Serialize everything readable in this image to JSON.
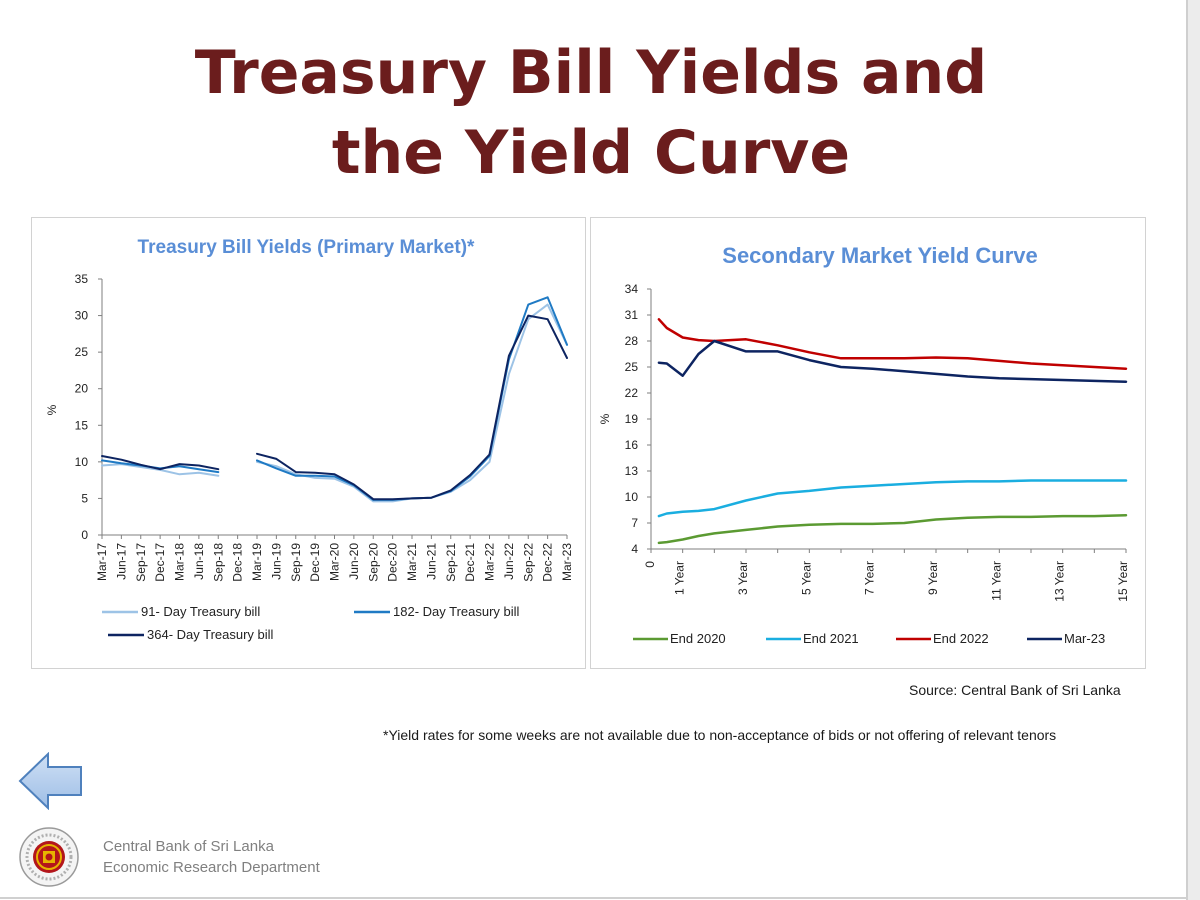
{
  "slide": {
    "title_line1": "Treasury Bill Yields and",
    "title_line2": "the Yield Curve",
    "source": "Source: Central Bank of Sri Lanka",
    "footnote": "*Yield rates for some weeks are not available due to non-acceptance of bids or not offering of relevant tenors",
    "org_line1": "Central Bank of Sri Lanka",
    "org_line2": "Economic Research Department",
    "back_icon": "left-arrow-icon",
    "logo_icon": "central-bank-seal"
  },
  "chart_data": [
    {
      "type": "line",
      "title": "Treasury Bill Yields (Primary Market)*",
      "ylabel": "%",
      "ylim": [
        0,
        35
      ],
      "yticks": [
        0,
        5,
        10,
        15,
        20,
        25,
        30,
        35
      ],
      "x_tick_labels": [
        "Mar-17",
        "Jun-17",
        "Sep-17",
        "Dec-17",
        "Mar-18",
        "Jun-18",
        "Sep-18",
        "Dec-18",
        "Mar-19",
        "Jun-19",
        "Sep-19",
        "Dec-19",
        "Mar-20",
        "Jun-20",
        "Sep-20",
        "Dec-20",
        "Mar-21",
        "Jun-21",
        "Sep-21",
        "Dec-21",
        "Mar-22",
        "Jun-22",
        "Sep-22",
        "Dec-22",
        "Mar-23"
      ],
      "legend_position": "bottom",
      "series": [
        {
          "name": "91- Day Treasury bill",
          "color": "#9dc3e6",
          "values": [
            9.5,
            9.7,
            9.3,
            8.9,
            8.3,
            8.5,
            8.1,
            null,
            10.0,
            9.4,
            8.3,
            7.8,
            7.7,
            6.6,
            4.6,
            4.6,
            5.0,
            5.1,
            5.9,
            7.5,
            10.0,
            22.0,
            29.5,
            31.5,
            26.0
          ]
        },
        {
          "name": "182- Day Treasury bill",
          "color": "#1f7ac4",
          "values": [
            10.2,
            9.8,
            9.5,
            9.1,
            9.4,
            9.0,
            8.6,
            null,
            10.2,
            9.1,
            8.1,
            8.1,
            8.0,
            6.8,
            4.8,
            4.8,
            5.0,
            5.1,
            6.0,
            8.0,
            10.8,
            24.0,
            31.5,
            32.5,
            26.0
          ]
        },
        {
          "name": "364- Day Treasury bill",
          "color": "#0d2461",
          "values": [
            10.8,
            10.3,
            9.6,
            9.0,
            9.7,
            9.5,
            9.0,
            null,
            11.1,
            10.4,
            8.6,
            8.5,
            8.3,
            6.9,
            4.9,
            4.9,
            5.0,
            5.1,
            6.1,
            8.2,
            11.0,
            24.5,
            30.0,
            29.5,
            24.2
          ]
        }
      ]
    },
    {
      "type": "line",
      "title": "Secondary Market Yield Curve",
      "ylabel": "%",
      "ylim": [
        4,
        34
      ],
      "yticks": [
        4,
        7,
        10,
        13,
        16,
        19,
        22,
        25,
        28,
        31,
        34
      ],
      "x": [
        0.25,
        0.5,
        1,
        1.5,
        2,
        3,
        4,
        5,
        6,
        7,
        8,
        9,
        10,
        11,
        12,
        13,
        14,
        15
      ],
      "x_tick_labels": [
        "0",
        "1 Year",
        "3 Year",
        "5 Year",
        "7 Year",
        "9 Year",
        "11 Year",
        "13 Year",
        "15 Year"
      ],
      "legend_position": "bottom",
      "series": [
        {
          "name": "End 2020",
          "color": "#5b9a32",
          "values": [
            4.7,
            4.8,
            5.1,
            5.5,
            5.8,
            6.2,
            6.6,
            6.8,
            6.9,
            6.9,
            7.0,
            7.4,
            7.6,
            7.7,
            7.7,
            7.8,
            7.8,
            7.9
          ]
        },
        {
          "name": "End 2021",
          "color": "#1aaee0",
          "values": [
            7.8,
            8.1,
            8.3,
            8.4,
            8.6,
            9.6,
            10.4,
            10.7,
            11.1,
            11.3,
            11.5,
            11.7,
            11.8,
            11.8,
            11.9,
            11.9,
            11.9,
            11.9
          ]
        },
        {
          "name": "End 2022",
          "color": "#c00000",
          "values": [
            30.5,
            29.5,
            28.4,
            28.1,
            28.0,
            28.2,
            27.5,
            26.7,
            26.0,
            26.0,
            26.0,
            26.1,
            26.0,
            25.7,
            25.4,
            25.2,
            25.0,
            24.8
          ]
        },
        {
          "name": "Mar-23",
          "color": "#0d2461",
          "values": [
            25.5,
            25.4,
            24.0,
            26.5,
            28.0,
            26.8,
            26.8,
            25.8,
            25.0,
            24.8,
            24.5,
            24.2,
            23.9,
            23.7,
            23.6,
            23.5,
            23.4,
            23.3
          ]
        }
      ]
    }
  ]
}
